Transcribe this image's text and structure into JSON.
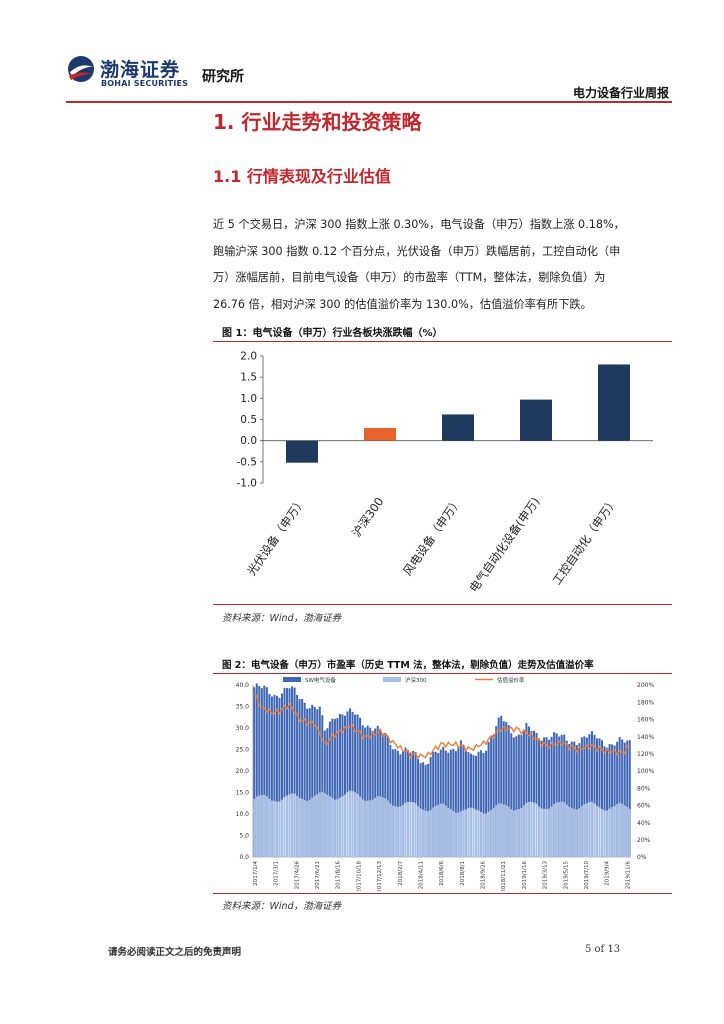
{
  "header": {
    "logo_cn": "渤海证券",
    "logo_en": "BOHAI SECURITIES",
    "institute": "研究所",
    "report_type": "电力设备行业周报",
    "colors": {
      "brand_blue": "#1b3a6b",
      "accent_red": "#c0282d"
    }
  },
  "section_title": "1. 行业走势和投资策略",
  "subsection_title": "1.1 行情表现及行业估值",
  "paragraph_lines": [
    "近 5 个交易日，沪深 300 指数上涨 0.30%，电气设备（申万）指数上涨 0.18%，",
    "跑输沪深 300 指数 0.12 个百分点，光伏设备（申万）跌幅居前，工控自动化（申",
    "万）涨幅居前，目前电气设备（申万）的市盈率（TTM，整体法，剔除负值）为",
    "26.76 倍，相对沪深 300 的估值溢价率为 130.0%，估值溢价率有所下跌。"
  ],
  "figure1": {
    "title": "图 1：电气设备（申万）行业各板块涨跌幅（%）",
    "source": "资料来源：Wind，渤海证券"
  },
  "figure2": {
    "title": "图 2：电气设备（申万）市盈率（历史 TTM 法，整体法，剔除负值）走势及估值溢价率",
    "source": "资料来源：Wind，渤海证券"
  },
  "footer": {
    "disclaimer": "请务必阅读正文之后的免责声明",
    "page": "5 of 13"
  },
  "chart_data": [
    {
      "type": "bar",
      "categories": [
        "光伏设备（申万）",
        "沪深300",
        "风电设备（申万）",
        "电气自动化设备(申万)",
        "工控自动化（申万）"
      ],
      "values": [
        -0.52,
        0.3,
        0.62,
        0.97,
        1.8
      ],
      "bar_colors": [
        "#1f3a5f",
        "#e8642c",
        "#1f3a5f",
        "#1f3a5f",
        "#1f3a5f"
      ],
      "ylim": [
        -1.0,
        2.0
      ],
      "yticks": [
        "2.0",
        "1.5",
        "1.0",
        "0.5",
        "0.0",
        "-0.5",
        "-1.0"
      ],
      "ytick_values": [
        2.0,
        1.5,
        1.0,
        0.5,
        0.0,
        -0.5,
        -1.0
      ],
      "grid": false,
      "legend": "none"
    },
    {
      "type": "bar+line",
      "legend": [
        "SW电气设备",
        "沪深300",
        "估值溢价率"
      ],
      "legend_placement": "top",
      "colors": {
        "SW电气设备": "#3f67b5",
        "沪深300": "#a8bfe6",
        "估值溢价率": "#ee7d3a"
      },
      "left_ylim": [
        0,
        40
      ],
      "left_yticks": [
        "40.0",
        "35.0",
        "30.0",
        "25.0",
        "20.0",
        "15.0",
        "10.0",
        "5.0",
        "0.0"
      ],
      "left_ytick_values": [
        40,
        35,
        30,
        25,
        20,
        15,
        10,
        5,
        0
      ],
      "right_ylim": [
        0,
        200
      ],
      "right_yticks": [
        "200%",
        "180%",
        "160%",
        "140%",
        "120%",
        "100%",
        "80%",
        "60%",
        "40%",
        "20%",
        "0%"
      ],
      "right_ytick_values": [
        200,
        180,
        160,
        140,
        120,
        100,
        80,
        60,
        40,
        20,
        0
      ],
      "x_tick_labels": [
        "2017/1/4",
        "2017/3/1",
        "2017/4/26",
        "2017/6/21",
        "2017/8/16",
        "2017/10/18",
        "2017/12/13",
        "2018/2/7",
        "2018/4/11",
        "2018/6/6",
        "2018/8/1",
        "2018/9/26",
        "2018/11/21",
        "2019/1/16",
        "2019/3/13",
        "2019/5/15",
        "2019/7/10",
        "2019/9/4",
        "2019/11/6"
      ],
      "weeks": 150,
      "series": [
        {
          "name": "SW电气设备",
          "unit": "x",
          "anchor_weeks": [
            0,
            8,
            14,
            22,
            26,
            28,
            32,
            40,
            46,
            52,
            56,
            62,
            68,
            70,
            74,
            78,
            82,
            86,
            92,
            98,
            104,
            108,
            112,
            118,
            124,
            130,
            136,
            142,
            146,
            149
          ],
          "anchor_values": [
            39.5,
            38.0,
            39.0,
            35.5,
            34.0,
            29.0,
            33.5,
            33.0,
            30.5,
            28.0,
            25.5,
            24.0,
            22.0,
            24.0,
            24.0,
            25.0,
            27.0,
            22.5,
            26.0,
            32.0,
            28.5,
            30.0,
            28.0,
            28.5,
            27.0,
            27.5,
            28.0,
            26.0,
            26.5,
            27.0
          ]
        },
        {
          "name": "沪深300",
          "unit": "x",
          "anchor_weeks": [
            0,
            20,
            40,
            52,
            62,
            70,
            78,
            86,
            96,
            110,
            130,
            149
          ],
          "anchor_values": [
            13.5,
            14.0,
            14.5,
            13.0,
            12.0,
            11.5,
            11.5,
            10.5,
            11.5,
            12.0,
            12.0,
            11.5
          ]
        },
        {
          "name": "估值溢价率",
          "unit": "%",
          "anchor_weeks": [
            0,
            3,
            8,
            14,
            18,
            24,
            28,
            32,
            38,
            44,
            50,
            56,
            62,
            68,
            74,
            80,
            86,
            92,
            98,
            104,
            110,
            116,
            122,
            128,
            134,
            140,
            146,
            149
          ],
          "anchor_values": [
            190,
            172,
            168,
            176,
            160,
            155,
            130,
            144,
            152,
            140,
            145,
            132,
            118,
            118,
            130,
            132,
            124,
            135,
            148,
            150,
            140,
            130,
            132,
            126,
            128,
            124,
            120,
            130
          ]
        }
      ]
    }
  ]
}
